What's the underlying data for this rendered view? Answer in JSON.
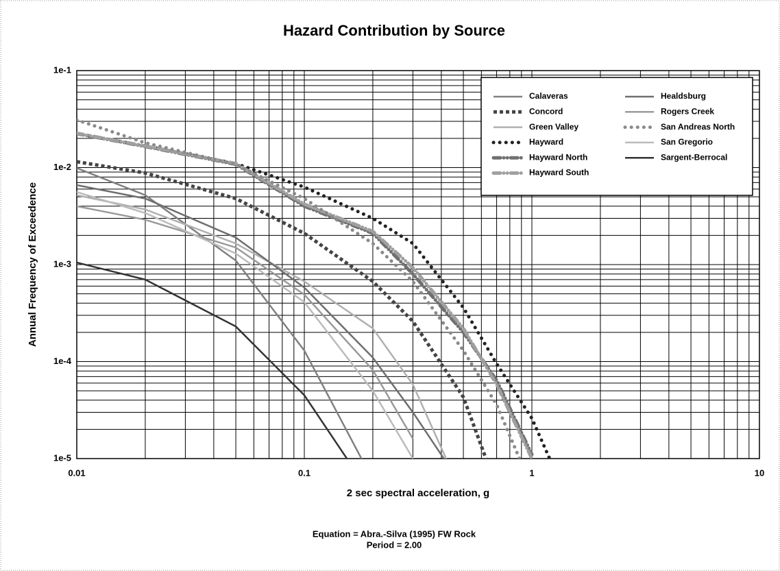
{
  "chart_data": {
    "type": "line",
    "title": "Hazard Contribution by Source",
    "xlabel": "2 sec spectral acceleration, g",
    "ylabel": "Annual Frequency of Exceedence",
    "notes": [
      "Equation = Abra.-Silva (1995) FW Rock",
      "Period = 2.00"
    ],
    "xscale": "log",
    "yscale": "log",
    "grid": true,
    "minor_grid": true,
    "legend": "upper right",
    "xlim": [
      0.01,
      10
    ],
    "xticks": [
      0.01,
      0.1,
      1,
      10
    ],
    "ylim": [
      1e-05,
      0.1
    ],
    "yticks": [
      {
        "value": 1e-05,
        "label": "1e-5"
      },
      {
        "value": 0.0001,
        "label": "1e-4"
      },
      {
        "value": 0.001,
        "label": "1e-3"
      },
      {
        "value": 0.01,
        "label": "1e-2"
      },
      {
        "value": 0.1,
        "label": "1e-1"
      }
    ],
    "x": [
      0.01,
      0.02,
      0.05,
      0.1,
      0.2,
      0.3,
      0.5,
      0.7,
      1,
      1.5
    ],
    "series": [
      {
        "name": "Calaveras",
        "color": "#808080",
        "style": "solid",
        "values": [
          0.0099,
          0.0052,
          0.0011,
          0.00013,
          6e-06,
          null,
          null,
          null,
          null,
          null
        ]
      },
      {
        "name": "Concord",
        "color": "#444444",
        "style": "dashed",
        "values": [
          0.0115,
          0.0088,
          0.0048,
          0.0021,
          0.00067,
          0.00026,
          4.3e-05,
          5e-06,
          null,
          null
        ]
      },
      {
        "name": "Green Valley",
        "color": "#b0b0b0",
        "style": "solid",
        "values": [
          0.0052,
          0.0037,
          0.00165,
          0.00067,
          0.00022,
          5.8e-05,
          4e-06,
          null,
          null,
          null
        ]
      },
      {
        "name": "Hayward",
        "color": "#222222",
        "style": "dotted",
        "values": [
          0.0224,
          0.0167,
          0.011,
          0.0063,
          0.003,
          0.00165,
          0.00036,
          9.5e-05,
          2.6e-05,
          3e-06
        ]
      },
      {
        "name": "Hayward North",
        "color": "#707070",
        "style": "dashdot",
        "values": [
          0.0224,
          0.0165,
          0.0108,
          0.004,
          0.0021,
          0.0008,
          0.0002,
          6.4e-05,
          1.1e-05,
          null
        ]
      },
      {
        "name": "Hayward South",
        "color": "#a0a0a0",
        "style": "dashdot",
        "values": [
          0.0226,
          0.0167,
          0.011,
          0.0042,
          0.0022,
          0.00093,
          0.00022,
          5.8e-05,
          1e-05,
          null
        ]
      },
      {
        "name": "Healdsburg",
        "color": "#6e6e6e",
        "style": "solid",
        "values": [
          0.0066,
          0.0048,
          0.0019,
          0.00058,
          0.00011,
          3e-05,
          5e-06,
          null,
          null,
          null
        ]
      },
      {
        "name": "Rogers Creek",
        "color": "#9a9a9a",
        "style": "solid",
        "values": [
          0.004,
          0.0029,
          0.0015,
          0.00049,
          8.2e-05,
          1.6e-05,
          null,
          null,
          null,
          null
        ]
      },
      {
        "name": "San Andreas North",
        "color": "#8a8a8a",
        "style": "dotted",
        "values": [
          0.031,
          0.018,
          0.0108,
          0.0048,
          0.00165,
          0.00067,
          0.00013,
          3.6e-05,
          5e-06,
          null
        ]
      },
      {
        "name": "San Gregorio",
        "color": "#bbbbbb",
        "style": "solid",
        "values": [
          0.0056,
          0.0034,
          0.0013,
          0.00041,
          5e-05,
          1e-05,
          null,
          null,
          null,
          null
        ]
      },
      {
        "name": "Sargent-Berrocal",
        "color": "#333333",
        "style": "solid",
        "values": [
          0.00105,
          0.0007,
          0.00023,
          4.5e-05,
          4e-06,
          null,
          null,
          null,
          null,
          null
        ]
      }
    ]
  }
}
